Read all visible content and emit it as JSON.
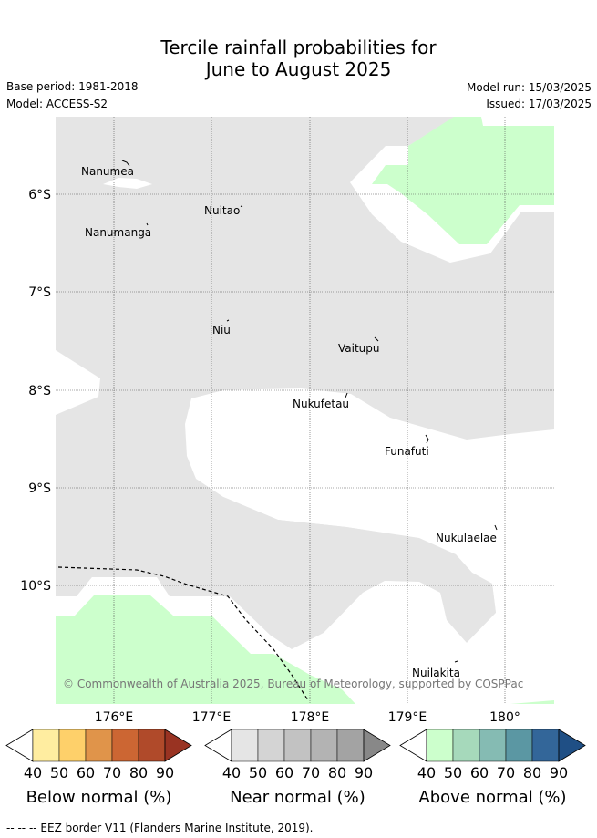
{
  "title_line1": "Tercile rainfall probabilities for",
  "title_line2": "June to August 2025",
  "base_period": "Base period: 1981-2018",
  "model": "Model: ACCESS-S2",
  "model_run": "Model run: 15/03/2025",
  "issued": "Issued: 17/03/2025",
  "map": {
    "longitude_ticks": [
      "176°E",
      "177°E",
      "178°E",
      "179°E",
      "180°"
    ],
    "latitude_ticks": [
      "6°S",
      "7°S",
      "8°S",
      "9°S",
      "10°S"
    ],
    "places": [
      "Nanumea",
      "Nuitao",
      "Nanumanga",
      "Niu",
      "Vaitupu",
      "Nukufetau",
      "Funafuti",
      "Nukulaelae",
      "Nuilakita"
    ],
    "copyright": "© Commonwealth of Australia 2025, Bureau of Meteorology, supported by COSPPac",
    "colors": {
      "near_normal_region": "#e5e5e5",
      "above_normal_region": "#ccffcc",
      "no_signal": "#ffffff"
    }
  },
  "legends": [
    {
      "title": "Below normal (%)",
      "labels": [
        "40",
        "50",
        "60",
        "70",
        "80",
        "90"
      ],
      "colors": [
        "#ffffff",
        "#ffeda0",
        "#fed06a",
        "#e0944a",
        "#cc6633",
        "#b04a2a",
        "#993322"
      ]
    },
    {
      "title": "Near normal (%)",
      "labels": [
        "40",
        "50",
        "60",
        "70",
        "80",
        "90"
      ],
      "colors": [
        "#ffffff",
        "#e5e5e5",
        "#d4d4d4",
        "#c2c2c2",
        "#b3b3b3",
        "#a3a3a3",
        "#888888"
      ]
    },
    {
      "title": "Above normal (%)",
      "labels": [
        "40",
        "50",
        "60",
        "70",
        "80",
        "90"
      ],
      "colors": [
        "#ffffff",
        "#ccffcc",
        "#a6d9bb",
        "#85bbb3",
        "#5b97a3",
        "#336699",
        "#1f4f85"
      ]
    }
  ],
  "footnote": "--  --  -- EEZ border V11 (Flanders Marine Institute, 2019)."
}
